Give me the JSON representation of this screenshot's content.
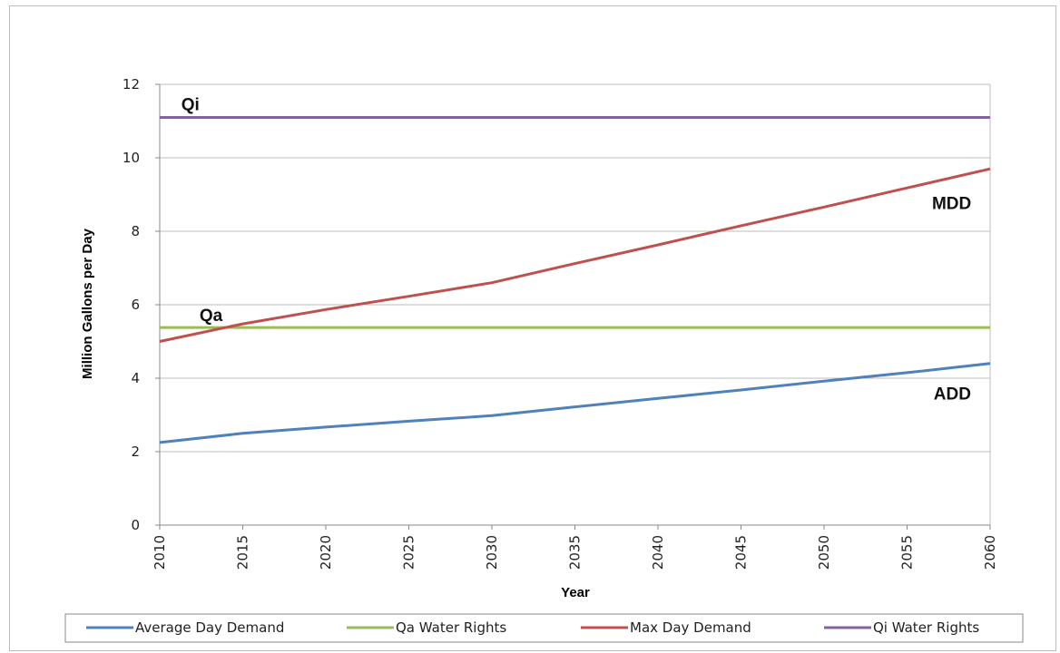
{
  "chart_data": {
    "type": "line",
    "ylabel": "Million Gallons per Day",
    "xlabel": "Year",
    "ylim": [
      0,
      12
    ],
    "yticks": [
      0,
      2,
      4,
      6,
      8,
      10,
      12
    ],
    "xlim": [
      2010,
      2060
    ],
    "xticks": [
      2010,
      2015,
      2020,
      2025,
      2030,
      2035,
      2040,
      2045,
      2050,
      2055,
      2060
    ],
    "grid": true,
    "legend_position": "bottom",
    "series": [
      {
        "name": "Average Day Demand",
        "color": "#4f81bd",
        "points": [
          [
            2010,
            2.25
          ],
          [
            2015,
            2.5
          ],
          [
            2020,
            2.67
          ],
          [
            2025,
            2.83
          ],
          [
            2030,
            2.98
          ],
          [
            2035,
            3.22
          ],
          [
            2040,
            3.45
          ],
          [
            2045,
            3.68
          ],
          [
            2050,
            3.92
          ],
          [
            2055,
            4.15
          ],
          [
            2060,
            4.4
          ]
        ]
      },
      {
        "name": "Qa Water Rights",
        "color": "#9bbb59",
        "points": [
          [
            2010,
            5.38
          ],
          [
            2060,
            5.38
          ]
        ]
      },
      {
        "name": "Max Day Demand",
        "color": "#c0504d",
        "points": [
          [
            2010,
            5.0
          ],
          [
            2015,
            5.48
          ],
          [
            2020,
            5.87
          ],
          [
            2025,
            6.23
          ],
          [
            2030,
            6.6
          ],
          [
            2035,
            7.12
          ],
          [
            2040,
            7.63
          ],
          [
            2045,
            8.15
          ],
          [
            2050,
            8.66
          ],
          [
            2055,
            9.18
          ],
          [
            2060,
            9.7
          ]
        ]
      },
      {
        "name": "Qi Water Rights",
        "color": "#8064a2",
        "points": [
          [
            2010,
            11.1
          ],
          [
            2060,
            11.1
          ]
        ]
      }
    ],
    "annotations": [
      {
        "text": "Qi",
        "x": 2011.3,
        "y": 11.3
      },
      {
        "text": "Qa",
        "x": 2012.4,
        "y": 5.55
      },
      {
        "text": "MDD",
        "x": 2056.5,
        "y": 8.6
      },
      {
        "text": "ADD",
        "x": 2056.6,
        "y": 3.42
      }
    ]
  }
}
